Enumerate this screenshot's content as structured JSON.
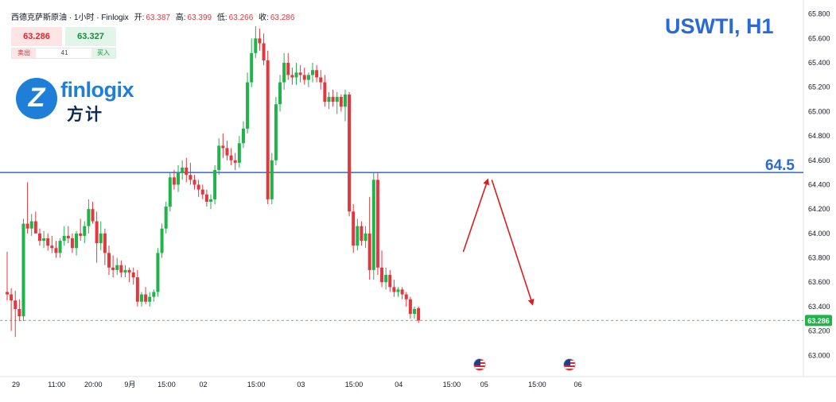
{
  "header": {
    "symbol_name": "西德克萨斯原油 · 1小时 · Finlogix",
    "open_label": "开:",
    "open": "63.387",
    "high_label": "高:",
    "high": "63.399",
    "low_label": "低:",
    "low": "63.266",
    "close_label": "收:",
    "close": "63.286"
  },
  "trade_panel": {
    "sell_price": "63.286",
    "buy_price": "63.327",
    "sell_label": "卖出",
    "buy_label": "买入",
    "spread": "41"
  },
  "logo": {
    "text_en": "finlogix",
    "text_cn": "方计",
    "mark": "Z"
  },
  "symbol_title": "USWTI, H1",
  "level_label": "64.5",
  "colors": {
    "up": "#1fb34a",
    "down": "#e0383e",
    "level_line": "#2a6ad7",
    "arrow": "#d81e1e",
    "price_line": "#5cc46a",
    "axis_text": "#131722"
  },
  "chart_data": {
    "type": "candlestick",
    "symbol": "USWTI",
    "timeframe": "H1",
    "ylim": [
      62.93,
      65.85
    ],
    "y_ticks": [
      "65.800",
      "65.600",
      "65.400",
      "65.200",
      "65.000",
      "64.800",
      "64.600",
      "64.400",
      "64.200",
      "64.000",
      "63.800",
      "63.600",
      "63.400",
      "63.200",
      "63.000"
    ],
    "x_ticks": [
      "29",
      "11:00",
      "20:00",
      "9月",
      "15:00",
      "02",
      "15:00",
      "03",
      "15:00",
      "04",
      "15:00",
      "05",
      "15:00",
      "06"
    ],
    "x_tick_index": [
      0,
      10,
      19,
      28,
      37,
      46,
      59,
      70,
      83,
      94,
      107,
      115,
      128,
      138
    ],
    "candles": [
      [
        63.52,
        63.85,
        63.45,
        63.5
      ],
      [
        63.5,
        63.55,
        63.2,
        63.45
      ],
      [
        63.45,
        63.53,
        63.15,
        63.38
      ],
      [
        63.38,
        63.46,
        63.28,
        63.32
      ],
      [
        63.32,
        64.12,
        63.28,
        64.08
      ],
      [
        64.08,
        64.42,
        64.0,
        64.04
      ],
      [
        64.04,
        64.16,
        63.98,
        64.1
      ],
      [
        64.1,
        64.18,
        64.02,
        64.0
      ],
      [
        64.0,
        64.04,
        63.9,
        63.94
      ],
      [
        63.94,
        64.02,
        63.88,
        63.96
      ],
      [
        63.96,
        64.0,
        63.86,
        63.9
      ],
      [
        63.9,
        63.98,
        63.84,
        63.88
      ],
      [
        63.88,
        63.94,
        63.8,
        63.84
      ],
      [
        63.84,
        63.96,
        63.8,
        63.94
      ],
      [
        63.94,
        64.06,
        63.9,
        63.98
      ],
      [
        63.98,
        64.06,
        63.92,
        63.96
      ],
      [
        63.96,
        64.0,
        63.84,
        63.88
      ],
      [
        63.88,
        64.02,
        63.82,
        64.0
      ],
      [
        64.0,
        64.12,
        63.94,
        63.98
      ],
      [
        63.98,
        64.1,
        63.92,
        64.06
      ],
      [
        64.06,
        64.28,
        64.0,
        64.2
      ],
      [
        64.2,
        64.26,
        64.08,
        64.1
      ],
      [
        64.1,
        64.18,
        63.76,
        63.92
      ],
      [
        63.92,
        64.1,
        63.86,
        64.0
      ],
      [
        64.0,
        64.04,
        63.74,
        63.84
      ],
      [
        63.84,
        63.9,
        63.66,
        63.72
      ],
      [
        63.72,
        63.82,
        63.64,
        63.7
      ],
      [
        63.7,
        63.8,
        63.66,
        63.74
      ],
      [
        63.74,
        63.78,
        63.64,
        63.68
      ],
      [
        63.68,
        63.74,
        63.64,
        63.7
      ],
      [
        63.7,
        63.72,
        63.6,
        63.68
      ],
      [
        63.68,
        63.72,
        63.58,
        63.64
      ],
      [
        63.64,
        63.7,
        63.4,
        63.44
      ],
      [
        63.44,
        63.52,
        63.4,
        63.5
      ],
      [
        63.5,
        63.56,
        63.42,
        63.44
      ],
      [
        63.44,
        63.52,
        63.4,
        63.48
      ],
      [
        63.48,
        63.54,
        63.44,
        63.52
      ],
      [
        63.52,
        63.88,
        63.48,
        63.84
      ],
      [
        63.84,
        64.08,
        63.8,
        64.04
      ],
      [
        64.04,
        64.26,
        64.0,
        64.22
      ],
      [
        64.22,
        64.5,
        64.18,
        64.46
      ],
      [
        64.46,
        64.52,
        64.36,
        64.4
      ],
      [
        64.4,
        64.56,
        64.34,
        64.5
      ],
      [
        64.5,
        64.6,
        64.44,
        64.54
      ],
      [
        64.54,
        64.62,
        64.42,
        64.48
      ],
      [
        64.48,
        64.58,
        64.4,
        64.44
      ],
      [
        64.44,
        64.48,
        64.36,
        64.4
      ],
      [
        64.4,
        64.44,
        64.3,
        64.36
      ],
      [
        64.36,
        64.4,
        64.28,
        64.32
      ],
      [
        64.32,
        64.36,
        64.22,
        64.26
      ],
      [
        64.26,
        64.32,
        64.2,
        64.28
      ],
      [
        64.28,
        64.56,
        64.24,
        64.52
      ],
      [
        64.52,
        64.78,
        64.48,
        64.72
      ],
      [
        64.72,
        64.82,
        64.62,
        64.7
      ],
      [
        64.7,
        64.76,
        64.6,
        64.64
      ],
      [
        64.64,
        64.7,
        64.56,
        64.6
      ],
      [
        64.6,
        64.66,
        64.52,
        64.58
      ],
      [
        64.58,
        64.8,
        64.54,
        64.74
      ],
      [
        64.74,
        64.92,
        64.7,
        64.86
      ],
      [
        64.86,
        65.32,
        64.82,
        65.24
      ],
      [
        65.24,
        65.6,
        65.2,
        65.48
      ],
      [
        65.48,
        65.7,
        65.44,
        65.6
      ],
      [
        65.6,
        65.68,
        65.5,
        65.56
      ],
      [
        65.56,
        65.64,
        65.38,
        65.42
      ],
      [
        65.42,
        65.5,
        64.24,
        64.28
      ],
      [
        64.28,
        64.66,
        64.24,
        64.6
      ],
      [
        64.6,
        65.12,
        64.56,
        65.06
      ],
      [
        65.06,
        65.3,
        65.0,
        65.24
      ],
      [
        65.24,
        65.48,
        65.18,
        65.4
      ],
      [
        65.4,
        65.48,
        65.26,
        65.3
      ],
      [
        65.3,
        65.36,
        65.22,
        65.28
      ],
      [
        65.28,
        65.4,
        65.22,
        65.32
      ],
      [
        65.32,
        65.38,
        65.24,
        65.3
      ],
      [
        65.3,
        65.36,
        65.22,
        65.26
      ],
      [
        65.26,
        65.32,
        65.2,
        65.3
      ],
      [
        65.3,
        65.4,
        65.24,
        65.34
      ],
      [
        65.34,
        65.38,
        65.24,
        65.28
      ],
      [
        65.28,
        65.34,
        65.18,
        65.24
      ],
      [
        65.24,
        65.3,
        65.04,
        65.08
      ],
      [
        65.08,
        65.16,
        65.02,
        65.12
      ],
      [
        65.12,
        65.18,
        65.04,
        65.08
      ],
      [
        65.08,
        65.16,
        64.98,
        65.12
      ],
      [
        65.12,
        65.14,
        65.0,
        65.04
      ],
      [
        65.04,
        65.18,
        64.92,
        65.14
      ],
      [
        65.14,
        65.16,
        64.14,
        64.18
      ],
      [
        64.18,
        64.24,
        63.84,
        63.9
      ],
      [
        63.9,
        64.12,
        63.86,
        64.06
      ],
      [
        64.06,
        64.1,
        63.9,
        63.94
      ],
      [
        63.94,
        64.06,
        63.88,
        64.0
      ],
      [
        64.0,
        64.3,
        63.62,
        63.7
      ],
      [
        63.7,
        64.5,
        63.62,
        64.44
      ],
      [
        64.44,
        64.5,
        63.66,
        63.72
      ],
      [
        63.72,
        63.86,
        63.56,
        63.6
      ],
      [
        63.6,
        63.72,
        63.54,
        63.66
      ],
      [
        63.66,
        63.7,
        63.52,
        63.56
      ],
      [
        63.56,
        63.62,
        63.48,
        63.52
      ],
      [
        63.52,
        63.56,
        63.48,
        63.54
      ],
      [
        63.54,
        63.56,
        63.46,
        63.5
      ],
      [
        63.5,
        63.52,
        63.4,
        63.46
      ],
      [
        63.46,
        63.48,
        63.3,
        63.34
      ],
      [
        63.34,
        63.4,
        63.3,
        63.38
      ],
      [
        63.387,
        63.399,
        63.266,
        63.286
      ]
    ],
    "level_line": 64.5,
    "current_price": 63.286,
    "current_price_label": "63.286",
    "projection": [
      {
        "from_index": 112,
        "from_value": 63.85,
        "to_index": 118,
        "to_value": 64.44
      },
      {
        "from_index": 119,
        "from_value": 64.44,
        "to_index": 129,
        "to_value": 63.42
      }
    ],
    "events": [
      {
        "index": 116,
        "icon": "us-flag-icon"
      },
      {
        "index": 138,
        "icon": "us-flag-icon"
      }
    ]
  }
}
